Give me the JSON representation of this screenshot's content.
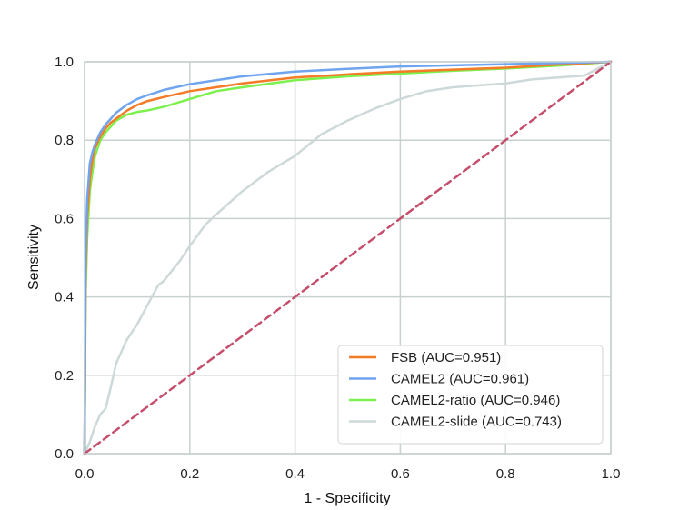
{
  "chart_data": {
    "type": "line",
    "title": "",
    "xlabel": "1 - Specificity",
    "ylabel": "Sensitivity",
    "xlim": [
      0,
      1
    ],
    "ylim": [
      0,
      1
    ],
    "x_ticks": [
      "0.0",
      "0.2",
      "0.4",
      "0.6",
      "0.8",
      "1.0"
    ],
    "y_ticks": [
      "0.0",
      "0.2",
      "0.4",
      "0.6",
      "0.8",
      "1.0"
    ],
    "grid": true,
    "legend_position": "bottom-right",
    "series": [
      {
        "name": "FSB (AUC=0.951)",
        "color": "#f47b27",
        "dashed": false,
        "points": [
          [
            0,
            0
          ],
          [
            0.002,
            0.45
          ],
          [
            0.005,
            0.6
          ],
          [
            0.01,
            0.7
          ],
          [
            0.015,
            0.75
          ],
          [
            0.02,
            0.78
          ],
          [
            0.03,
            0.81
          ],
          [
            0.04,
            0.83
          ],
          [
            0.05,
            0.845
          ],
          [
            0.06,
            0.855
          ],
          [
            0.08,
            0.875
          ],
          [
            0.1,
            0.89
          ],
          [
            0.12,
            0.9
          ],
          [
            0.15,
            0.91
          ],
          [
            0.2,
            0.925
          ],
          [
            0.3,
            0.945
          ],
          [
            0.4,
            0.96
          ],
          [
            0.5,
            0.968
          ],
          [
            0.6,
            0.975
          ],
          [
            0.7,
            0.98
          ],
          [
            0.8,
            0.985
          ],
          [
            0.9,
            0.993
          ],
          [
            1,
            1
          ]
        ]
      },
      {
        "name": "CAMEL2 (AUC=0.961)",
        "color": "#6fa4ef",
        "dashed": false,
        "points": [
          [
            0,
            0
          ],
          [
            0.002,
            0.5
          ],
          [
            0.005,
            0.65
          ],
          [
            0.01,
            0.74
          ],
          [
            0.015,
            0.77
          ],
          [
            0.02,
            0.79
          ],
          [
            0.03,
            0.82
          ],
          [
            0.04,
            0.84
          ],
          [
            0.05,
            0.855
          ],
          [
            0.06,
            0.87
          ],
          [
            0.08,
            0.89
          ],
          [
            0.1,
            0.905
          ],
          [
            0.12,
            0.915
          ],
          [
            0.15,
            0.928
          ],
          [
            0.2,
            0.943
          ],
          [
            0.3,
            0.963
          ],
          [
            0.4,
            0.975
          ],
          [
            0.5,
            0.982
          ],
          [
            0.6,
            0.988
          ],
          [
            0.7,
            0.991
          ],
          [
            0.8,
            0.994
          ],
          [
            0.9,
            0.997
          ],
          [
            1,
            1
          ]
        ]
      },
      {
        "name": "CAMEL2-ratio (AUC=0.946)",
        "color": "#7cf04c",
        "dashed": false,
        "points": [
          [
            0,
            0
          ],
          [
            0.002,
            0.4
          ],
          [
            0.005,
            0.55
          ],
          [
            0.01,
            0.67
          ],
          [
            0.015,
            0.72
          ],
          [
            0.02,
            0.76
          ],
          [
            0.03,
            0.8
          ],
          [
            0.04,
            0.82
          ],
          [
            0.05,
            0.835
          ],
          [
            0.06,
            0.85
          ],
          [
            0.08,
            0.865
          ],
          [
            0.1,
            0.872
          ],
          [
            0.12,
            0.876
          ],
          [
            0.15,
            0.885
          ],
          [
            0.2,
            0.905
          ],
          [
            0.25,
            0.925
          ],
          [
            0.3,
            0.935
          ],
          [
            0.4,
            0.953
          ],
          [
            0.5,
            0.963
          ],
          [
            0.6,
            0.97
          ],
          [
            0.7,
            0.977
          ],
          [
            0.8,
            0.983
          ],
          [
            0.9,
            0.99
          ],
          [
            1,
            1
          ]
        ]
      },
      {
        "name": "CAMEL2-slide (AUC=0.743)",
        "color": "#cdd8d8",
        "dashed": false,
        "points": [
          [
            0,
            0
          ],
          [
            0.01,
            0.03
          ],
          [
            0.02,
            0.07
          ],
          [
            0.03,
            0.1
          ],
          [
            0.04,
            0.115
          ],
          [
            0.05,
            0.17
          ],
          [
            0.06,
            0.23
          ],
          [
            0.08,
            0.29
          ],
          [
            0.1,
            0.33
          ],
          [
            0.12,
            0.38
          ],
          [
            0.14,
            0.43
          ],
          [
            0.15,
            0.44
          ],
          [
            0.18,
            0.49
          ],
          [
            0.2,
            0.53
          ],
          [
            0.23,
            0.585
          ],
          [
            0.25,
            0.61
          ],
          [
            0.3,
            0.67
          ],
          [
            0.35,
            0.72
          ],
          [
            0.4,
            0.76
          ],
          [
            0.45,
            0.815
          ],
          [
            0.5,
            0.85
          ],
          [
            0.55,
            0.88
          ],
          [
            0.6,
            0.905
          ],
          [
            0.65,
            0.925
          ],
          [
            0.7,
            0.935
          ],
          [
            0.75,
            0.94
          ],
          [
            0.8,
            0.945
          ],
          [
            0.85,
            0.955
          ],
          [
            0.9,
            0.96
          ],
          [
            0.95,
            0.965
          ],
          [
            1,
            1
          ]
        ]
      },
      {
        "name": "",
        "color": "#c44e6b",
        "dashed": true,
        "points": [
          [
            0,
            0
          ],
          [
            1,
            1
          ]
        ]
      }
    ]
  }
}
